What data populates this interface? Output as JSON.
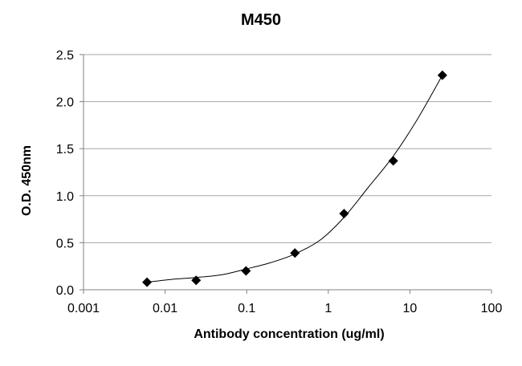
{
  "chart_data": {
    "type": "scatter",
    "title": "M450",
    "xlabel": "Antibody concentration (ug/ml)",
    "ylabel": "O.D. 450nm",
    "x_scale": "log",
    "xlim": [
      0.001,
      100
    ],
    "ylim": [
      0,
      2.5
    ],
    "x_ticks": [
      "0.001",
      "0.01",
      "0.1",
      "1",
      "10",
      "100"
    ],
    "x_tick_values": [
      0.001,
      0.01,
      0.1,
      1,
      10,
      100
    ],
    "y_ticks": [
      "0.0",
      "0.5",
      "1.0",
      "1.5",
      "2.0",
      "2.5"
    ],
    "y_tick_values": [
      0,
      0.5,
      1.0,
      1.5,
      2.0,
      2.5
    ],
    "grid": "horizontal",
    "legend": "none",
    "marker": "diamond",
    "colors": {
      "marker": "#000000",
      "curve": "#000000",
      "grid": "#a6a6a6",
      "axis": "#808080"
    },
    "series": [
      {
        "x": [
          0.006,
          0.024,
          0.098,
          0.39,
          1.56,
          6.25,
          25
        ],
        "y": [
          0.08,
          0.1,
          0.2,
          0.39,
          0.81,
          1.37,
          2.28
        ]
      }
    ],
    "fit_curve": {
      "x": [
        0.006,
        0.012,
        0.024,
        0.05,
        0.098,
        0.2,
        0.39,
        0.8,
        1.56,
        3.1,
        6.25,
        12.5,
        25
      ],
      "y": [
        0.08,
        0.11,
        0.13,
        0.16,
        0.22,
        0.29,
        0.38,
        0.53,
        0.77,
        1.09,
        1.42,
        1.82,
        2.28
      ]
    }
  }
}
